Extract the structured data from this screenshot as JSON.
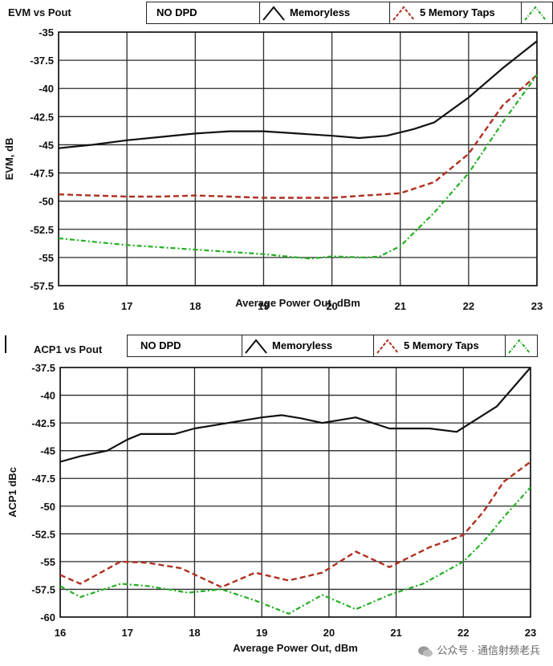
{
  "colors": {
    "memoryless": "#111111",
    "memory_taps": "#b03020",
    "green": "#22b022",
    "grid": "#2a2a2a"
  },
  "chart_data": [
    {
      "type": "line",
      "title": "EVM vs Pout",
      "legend": [
        "NO DPD",
        "Memoryless",
        "5 Memory Taps"
      ],
      "xlabel": "Average Power Out, dBm",
      "ylabel": "EVM, dB",
      "xlim": [
        16,
        23
      ],
      "ylim": [
        -57.5,
        -35
      ],
      "x_ticks": [
        "16",
        "17",
        "18",
        "19",
        "20",
        "21",
        "22",
        "23"
      ],
      "y_ticks": [
        "-35",
        "-37.5",
        "-40",
        "-42.5",
        "-45",
        "-47.5",
        "-50",
        "-52.5",
        "-55",
        "-57.5"
      ],
      "series": [
        {
          "name": "Memoryless",
          "style": "solid",
          "color_key": "memoryless",
          "x": [
            16,
            16.5,
            17,
            17.5,
            18,
            18.5,
            19,
            19.5,
            20,
            20.4,
            20.8,
            21.2,
            21.5,
            22,
            22.5,
            23
          ],
          "y": [
            -45.3,
            -45,
            -44.6,
            -44.3,
            -44,
            -43.8,
            -43.8,
            -44,
            -44.2,
            -44.4,
            -44.2,
            -43.6,
            -43,
            -40.8,
            -38.2,
            -35.8
          ]
        },
        {
          "name": "5 Memory Taps",
          "style": "dashed",
          "color_key": "memory_taps",
          "x": [
            16,
            16.5,
            17,
            17.5,
            18,
            18.5,
            19,
            19.5,
            20,
            20.5,
            21,
            21.5,
            22,
            22.5,
            23
          ],
          "y": [
            -49.4,
            -49.5,
            -49.6,
            -49.6,
            -49.5,
            -49.6,
            -49.7,
            -49.7,
            -49.7,
            -49.5,
            -49.3,
            -48.3,
            -45.8,
            -41.5,
            -38.8
          ]
        },
        {
          "name": "NO DPD (green)",
          "style": "dashdot",
          "color_key": "green",
          "x": [
            16,
            16.5,
            17,
            17.5,
            18,
            18.5,
            19,
            19.5,
            19.7,
            20,
            20.5,
            20.7,
            21,
            21.5,
            22,
            22.5,
            23
          ],
          "y": [
            -53.3,
            -53.6,
            -53.9,
            -54.1,
            -54.3,
            -54.5,
            -54.7,
            -55,
            -55.1,
            -54.9,
            -55,
            -54.9,
            -54,
            -51,
            -47.5,
            -43,
            -38.8
          ]
        }
      ]
    },
    {
      "type": "line",
      "title": "ACP1 vs Pout",
      "legend": [
        "NO DPD",
        "Memoryless",
        "5 Memory Taps"
      ],
      "xlabel": "Average Power Out, dBm",
      "ylabel": "ACP1 dBc",
      "xlim": [
        16,
        23
      ],
      "ylim": [
        -60,
        -37.5
      ],
      "x_ticks": [
        "16",
        "17",
        "18",
        "19",
        "20",
        "21",
        "22",
        "23"
      ],
      "y_ticks": [
        "-37.5",
        "-40",
        "-42.5",
        "-45",
        "-47.5",
        "-50",
        "-52.5",
        "-55",
        "-57.5",
        "-60"
      ],
      "series": [
        {
          "name": "Memoryless",
          "style": "solid",
          "color_key": "memoryless",
          "x": [
            16,
            16.3,
            16.7,
            17,
            17.2,
            17.7,
            18,
            18.5,
            19,
            19.3,
            19.6,
            19.9,
            20.4,
            20.9,
            21.5,
            21.9,
            22.5,
            23
          ],
          "y": [
            -46,
            -45.5,
            -45,
            -44,
            -43.5,
            -43.5,
            -43,
            -42.5,
            -42,
            -41.8,
            -42.1,
            -42.5,
            -42,
            -43,
            -43,
            -43.3,
            -41,
            -37.5
          ]
        },
        {
          "name": "5 Memory Taps",
          "style": "dashed",
          "color_key": "memory_taps",
          "x": [
            16,
            16.3,
            16.6,
            16.9,
            17.3,
            17.8,
            18.4,
            18.9,
            19.4,
            19.9,
            20.4,
            20.9,
            21.5,
            22,
            22.3,
            22.6,
            23
          ],
          "y": [
            -56.2,
            -57,
            -56,
            -55,
            -55.1,
            -55.6,
            -57.3,
            -56,
            -56.7,
            -56,
            -54.1,
            -55.5,
            -53.7,
            -52.6,
            -50.5,
            -47.8,
            -46
          ]
        },
        {
          "name": "NO DPD (green)",
          "style": "dashdot",
          "color_key": "green",
          "x": [
            16,
            16.3,
            16.9,
            17.3,
            17.9,
            18.4,
            18.9,
            19.4,
            19.9,
            20.4,
            20.9,
            21.4,
            22,
            22.3,
            22.6,
            23
          ],
          "y": [
            -57.2,
            -58.2,
            -57,
            -57.2,
            -57.8,
            -57.5,
            -58.5,
            -59.7,
            -58,
            -59.3,
            -58,
            -57,
            -55,
            -53.2,
            -51,
            -48.3
          ]
        }
      ]
    }
  ],
  "watermark": "公众号 · 通信射频老兵"
}
